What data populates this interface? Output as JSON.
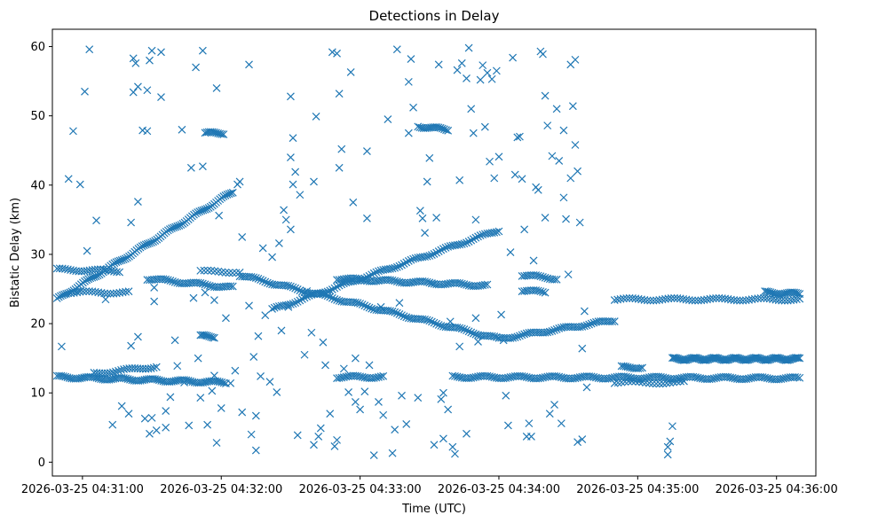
{
  "chart_data": {
    "type": "scatter",
    "title": "Detections in Delay",
    "xlabel": "Time (UTC)",
    "ylabel": "Bistatic Delay (km)",
    "marker": "x",
    "color": "#1f77b4",
    "x_unit": "seconds after 2026-03-25 04:30:00",
    "xlim": [
      47,
      377
    ],
    "ylim": [
      -2,
      62.5
    ],
    "grid": false,
    "x_ticks": [
      {
        "value": 60,
        "label": "2026-03-25 04:31:00"
      },
      {
        "value": 120,
        "label": "2026-03-25 04:32:00"
      },
      {
        "value": 180,
        "label": "2026-03-25 04:33:00"
      },
      {
        "value": 240,
        "label": "2026-03-25 04:34:00"
      },
      {
        "value": 300,
        "label": "2026-03-25 04:35:00"
      },
      {
        "value": 360,
        "label": "2026-03-25 04:36:00"
      }
    ],
    "y_ticks": [
      0,
      10,
      20,
      30,
      40,
      50,
      60
    ],
    "tracks": [
      {
        "name": "track-rising-1",
        "from": [
          49,
          23.5
        ],
        "to": [
          125,
          39
        ],
        "step": 0.8
      },
      {
        "name": "track-27",
        "from": [
          49,
          27.8
        ],
        "to": [
          76,
          27.6
        ],
        "step": 1.2
      },
      {
        "name": "track-24-25",
        "from": [
          55,
          24.5
        ],
        "to": [
          80,
          24.5
        ],
        "step": 1.3
      },
      {
        "name": "track-12",
        "from": [
          49,
          12.3
        ],
        "to": [
          122,
          11.5
        ],
        "step": 0.9
      },
      {
        "name": "track-12-13",
        "from": [
          65,
          12.8
        ],
        "to": [
          92,
          13.8
        ],
        "step": 1.2
      },
      {
        "name": "track-26-falling",
        "from": [
          88,
          26.5
        ],
        "to": [
          125,
          25.2
        ],
        "step": 1
      },
      {
        "name": "track-27-flat",
        "from": [
          111,
          27.5
        ],
        "to": [
          128,
          27.5
        ],
        "step": 1.5
      },
      {
        "name": "track-cross-down",
        "from": [
          128,
          27
        ],
        "to": [
          240,
          17.8
        ],
        "step": 1
      },
      {
        "name": "track-cross-up",
        "from": [
          142,
          22
        ],
        "to": [
          240,
          33.5
        ],
        "step": 1
      },
      {
        "name": "track-26-mid",
        "from": [
          170,
          26.5
        ],
        "to": [
          235,
          25.5
        ],
        "step": 1
      },
      {
        "name": "track-17-rise",
        "from": [
          240,
          17.8
        ],
        "to": [
          290,
          20.5
        ],
        "step": 1
      },
      {
        "name": "track-48",
        "from": [
          205,
          48.5
        ],
        "to": [
          218,
          48
        ],
        "step": 0.8
      },
      {
        "name": "track-47-5",
        "from": [
          113,
          47.5
        ],
        "to": [
          121,
          47.5
        ],
        "step": 0.8
      },
      {
        "name": "track-18",
        "from": [
          111,
          18.2
        ],
        "to": [
          117,
          18.1
        ],
        "step": 0.8
      },
      {
        "name": "track-12-mid",
        "from": [
          170,
          12.3
        ],
        "to": [
          190,
          12.3
        ],
        "step": 1
      },
      {
        "name": "track-12-late",
        "from": [
          220,
          12.3
        ],
        "to": [
          370,
          12.1
        ],
        "step": 1
      },
      {
        "name": "track-15",
        "from": [
          315,
          14.9
        ],
        "to": [
          370,
          14.9
        ],
        "step": 0.6
      },
      {
        "name": "track-23-5",
        "from": [
          290,
          23.5
        ],
        "to": [
          370,
          23.5
        ],
        "step": 1.3
      },
      {
        "name": "track-27-late",
        "from": [
          250,
          27
        ],
        "to": [
          265,
          26.5
        ],
        "step": 1
      },
      {
        "name": "track-25-late",
        "from": [
          250,
          24.8
        ],
        "to": [
          260,
          24.5
        ],
        "step": 1
      },
      {
        "name": "track-24-tail",
        "from": [
          355,
          24.5
        ],
        "to": [
          370,
          24.3
        ],
        "step": 0.8
      },
      {
        "name": "track-12-early-late",
        "from": [
          290,
          11.5
        ],
        "to": [
          320,
          11.5
        ],
        "step": 1.5
      },
      {
        "name": "track-13-5",
        "from": [
          293,
          13.7
        ],
        "to": [
          302,
          13.7
        ],
        "step": 0.9
      }
    ],
    "scatter_points": [
      [
        51,
        16.7
      ],
      [
        54,
        40.9
      ],
      [
        56,
        47.8
      ],
      [
        59,
        40.1
      ],
      [
        61,
        53.5
      ],
      [
        62,
        30.5
      ],
      [
        63,
        59.6
      ],
      [
        66,
        34.9
      ],
      [
        70,
        23.5
      ],
      [
        73,
        5.4
      ],
      [
        77,
        8.1
      ],
      [
        80,
        7
      ],
      [
        81,
        16.8
      ],
      [
        81,
        34.6
      ],
      [
        82,
        58.3
      ],
      [
        82,
        53.4
      ],
      [
        83,
        57.6
      ],
      [
        84,
        54.2
      ],
      [
        84,
        37.6
      ],
      [
        84,
        18.1
      ],
      [
        86,
        47.9
      ],
      [
        87,
        6.3
      ],
      [
        88,
        53.7
      ],
      [
        88,
        47.8
      ],
      [
        89,
        58
      ],
      [
        89,
        4.1
      ],
      [
        90,
        59.4
      ],
      [
        90,
        6.4
      ],
      [
        91,
        25.2
      ],
      [
        91,
        23.2
      ],
      [
        92,
        4.6
      ],
      [
        94,
        59.2
      ],
      [
        94,
        52.7
      ],
      [
        96,
        7.4
      ],
      [
        96,
        5
      ],
      [
        98,
        9.4
      ],
      [
        100,
        17.6
      ],
      [
        101,
        13.9
      ],
      [
        103,
        48
      ],
      [
        104,
        11.5
      ],
      [
        106,
        5.3
      ],
      [
        107,
        42.5
      ],
      [
        108,
        23.7
      ],
      [
        109,
        57
      ],
      [
        110,
        15
      ],
      [
        111,
        9.3
      ],
      [
        112,
        42.7
      ],
      [
        112,
        59.4
      ],
      [
        113,
        24.5
      ],
      [
        114,
        5.4
      ],
      [
        116,
        10.3
      ],
      [
        117,
        23.4
      ],
      [
        117,
        12.5
      ],
      [
        118,
        2.8
      ],
      [
        118,
        54
      ],
      [
        119,
        35.6
      ],
      [
        120,
        7.8
      ],
      [
        122,
        20.8
      ],
      [
        124,
        11.4
      ],
      [
        126,
        13.2
      ],
      [
        127,
        40.1
      ],
      [
        128,
        40.5
      ],
      [
        129,
        7.2
      ],
      [
        129,
        32.5
      ],
      [
        132,
        57.4
      ],
      [
        132,
        22.6
      ],
      [
        133,
        4
      ],
      [
        134,
        15.2
      ],
      [
        135,
        6.7
      ],
      [
        135,
        1.7
      ],
      [
        136,
        18.2
      ],
      [
        137,
        12.4
      ],
      [
        138,
        30.9
      ],
      [
        139,
        21.2
      ],
      [
        141,
        11.6
      ],
      [
        142,
        29.6
      ],
      [
        144,
        10.1
      ],
      [
        145,
        31.6
      ],
      [
        146,
        19
      ],
      [
        147,
        36.4
      ],
      [
        148,
        35
      ],
      [
        149,
        22.4
      ],
      [
        150,
        33.6
      ],
      [
        150,
        52.8
      ],
      [
        150,
        44
      ],
      [
        151,
        40.1
      ],
      [
        151,
        46.8
      ],
      [
        152,
        41.9
      ],
      [
        153,
        3.9
      ],
      [
        154,
        38.6
      ],
      [
        156,
        15.5
      ],
      [
        157,
        24.7
      ],
      [
        159,
        18.7
      ],
      [
        160,
        2.5
      ],
      [
        160,
        40.5
      ],
      [
        161,
        49.9
      ],
      [
        162,
        3.7
      ],
      [
        163,
        4.9
      ],
      [
        164,
        17.3
      ],
      [
        165,
        14
      ],
      [
        167,
        7
      ],
      [
        168,
        59.2
      ],
      [
        169,
        2.3
      ],
      [
        170,
        3.2
      ],
      [
        170,
        59
      ],
      [
        171,
        53.2
      ],
      [
        171,
        42.5
      ],
      [
        172,
        45.2
      ],
      [
        173,
        13.5
      ],
      [
        175,
        10.1
      ],
      [
        176,
        56.3
      ],
      [
        177,
        37.5
      ],
      [
        178,
        15
      ],
      [
        178,
        8.7
      ],
      [
        180,
        7.6
      ],
      [
        182,
        10.2
      ],
      [
        183,
        44.9
      ],
      [
        183,
        35.2
      ],
      [
        184,
        14
      ],
      [
        186,
        1
      ],
      [
        188,
        8.7
      ],
      [
        189,
        22.4
      ],
      [
        190,
        6.8
      ],
      [
        192,
        49.5
      ],
      [
        194,
        1.3
      ],
      [
        195,
        4.7
      ],
      [
        196,
        59.6
      ],
      [
        197,
        23
      ],
      [
        198,
        9.6
      ],
      [
        200,
        5.5
      ],
      [
        201,
        54.9
      ],
      [
        201,
        47.5
      ],
      [
        202,
        58.2
      ],
      [
        203,
        51.2
      ],
      [
        205,
        9.3
      ],
      [
        206,
        36.3
      ],
      [
        207,
        35.2
      ],
      [
        208,
        33.1
      ],
      [
        209,
        40.5
      ],
      [
        210,
        43.9
      ],
      [
        211,
        25.8
      ],
      [
        212,
        2.5
      ],
      [
        213,
        35.3
      ],
      [
        214,
        57.4
      ],
      [
        215,
        9.1
      ],
      [
        216,
        10
      ],
      [
        216,
        3.4
      ],
      [
        218,
        7.6
      ],
      [
        219,
        20.3
      ],
      [
        220,
        2.2
      ],
      [
        221,
        1.2
      ],
      [
        222,
        56.6
      ],
      [
        223,
        40.7
      ],
      [
        223,
        16.7
      ],
      [
        224,
        57.6
      ],
      [
        226,
        55.4
      ],
      [
        226,
        4.1
      ],
      [
        227,
        59.8
      ],
      [
        228,
        51
      ],
      [
        229,
        47.5
      ],
      [
        230,
        35
      ],
      [
        230,
        20.8
      ],
      [
        231,
        17.4
      ],
      [
        232,
        55.2
      ],
      [
        233,
        57.3
      ],
      [
        234,
        48.4
      ],
      [
        235,
        56.2
      ],
      [
        236,
        43.4
      ],
      [
        237,
        55.3
      ],
      [
        238,
        41
      ],
      [
        239,
        56.5
      ],
      [
        240,
        44.1
      ],
      [
        241,
        21.3
      ],
      [
        242,
        17.6
      ],
      [
        243,
        9.6
      ],
      [
        244,
        5.3
      ],
      [
        245,
        30.3
      ],
      [
        246,
        58.4
      ],
      [
        247,
        41.5
      ],
      [
        248,
        46.9
      ],
      [
        249,
        47
      ],
      [
        250,
        40.9
      ],
      [
        251,
        33.6
      ],
      [
        252,
        3.7
      ],
      [
        253,
        5.6
      ],
      [
        254,
        3.7
      ],
      [
        255,
        29.1
      ],
      [
        256,
        39.7
      ],
      [
        257,
        39.3
      ],
      [
        258,
        59.3
      ],
      [
        259,
        58.9
      ],
      [
        260,
        52.9
      ],
      [
        260,
        35.3
      ],
      [
        261,
        48.6
      ],
      [
        262,
        7
      ],
      [
        263,
        44.2
      ],
      [
        264,
        8.3
      ],
      [
        265,
        51
      ],
      [
        266,
        43.5
      ],
      [
        267,
        5.6
      ],
      [
        268,
        47.9
      ],
      [
        268,
        38.2
      ],
      [
        269,
        35.1
      ],
      [
        270,
        27.1
      ],
      [
        271,
        41
      ],
      [
        271,
        57.4
      ],
      [
        272,
        51.4
      ],
      [
        273,
        45.8
      ],
      [
        273,
        58.1
      ],
      [
        274,
        42
      ],
      [
        274,
        2.9
      ],
      [
        275,
        34.6
      ],
      [
        276,
        3.3
      ],
      [
        276,
        16.4
      ],
      [
        277,
        21.8
      ],
      [
        278,
        10.8
      ],
      [
        313,
        1.1
      ],
      [
        313,
        2.2
      ],
      [
        314,
        3
      ],
      [
        315,
        5.2
      ]
    ]
  }
}
